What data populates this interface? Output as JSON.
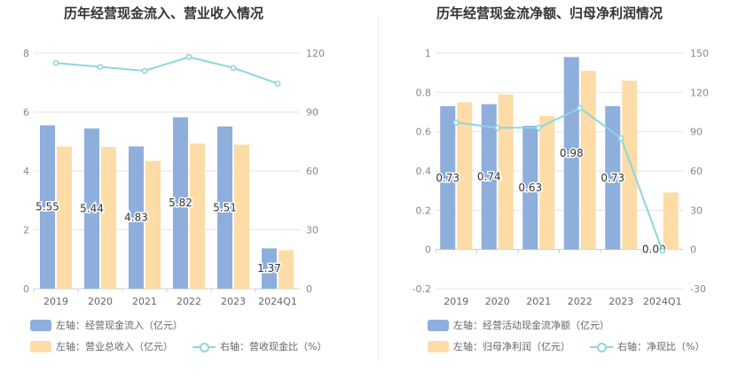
{
  "chart_data": [
    {
      "type": "bar",
      "title": "历年经营现金流入、营业收入情况",
      "categories": [
        "2019",
        "2020",
        "2021",
        "2022",
        "2023",
        "2024Q1"
      ],
      "left_axis": {
        "ticks": [
          "0",
          "2",
          "4",
          "6",
          "8"
        ],
        "ylim": [
          0,
          8
        ]
      },
      "right_axis": {
        "ticks": [
          "0",
          "30",
          "60",
          "90",
          "120"
        ],
        "ylim": [
          0,
          120
        ]
      },
      "series": [
        {
          "name": "左轴：经营现金流入（亿元）",
          "kind": "bar",
          "axis": "left",
          "color": "#8eaedc",
          "values": [
            5.55,
            5.44,
            4.83,
            5.82,
            5.51,
            1.37
          ],
          "labels": [
            "5.55",
            "5.44",
            "4.83",
            "5.82",
            "5.51",
            "1.37"
          ]
        },
        {
          "name": "左轴：营业总收入（亿元）",
          "kind": "bar",
          "axis": "left",
          "color": "#fddca7",
          "values": [
            4.83,
            4.81,
            4.34,
            4.93,
            4.89,
            1.31
          ]
        },
        {
          "name": "右轴：营收现金比（%）",
          "kind": "line",
          "axis": "right",
          "color": "#8fd5dd",
          "values": [
            115,
            113,
            111,
            118,
            112.5,
            104.5
          ]
        }
      ]
    },
    {
      "type": "bar",
      "title": "历年经营现金流净额、归母净利润情况",
      "categories": [
        "2019",
        "2020",
        "2021",
        "2022",
        "2023",
        "2024Q1"
      ],
      "left_axis": {
        "ticks": [
          "-0.2",
          "0",
          "0.2",
          "0.4",
          "0.6",
          "0.8",
          "1"
        ],
        "ylim": [
          -0.2,
          1
        ]
      },
      "right_axis": {
        "ticks": [
          "-30",
          "0",
          "30",
          "60",
          "90",
          "120",
          "150"
        ],
        "ylim": [
          -30,
          150
        ]
      },
      "series": [
        {
          "name": "左轴：经营活动现金流净额（亿元）",
          "kind": "bar",
          "axis": "left",
          "color": "#8eaedc",
          "values": [
            0.73,
            0.74,
            0.63,
            0.98,
            0.73,
            0.0
          ],
          "labels": [
            "0.73",
            "0.74",
            "0.63",
            "0.98",
            "0.73",
            "0.00"
          ]
        },
        {
          "name": "左轴：归母净利润（亿元）",
          "kind": "bar",
          "axis": "left",
          "color": "#fddca7",
          "values": [
            0.75,
            0.79,
            0.68,
            0.91,
            0.86,
            0.29
          ]
        },
        {
          "name": "右轴：净现比（%）",
          "kind": "line",
          "axis": "right",
          "color": "#8fd5dd",
          "values": [
            97,
            93,
            93,
            108,
            85,
            -1
          ]
        }
      ]
    }
  ]
}
